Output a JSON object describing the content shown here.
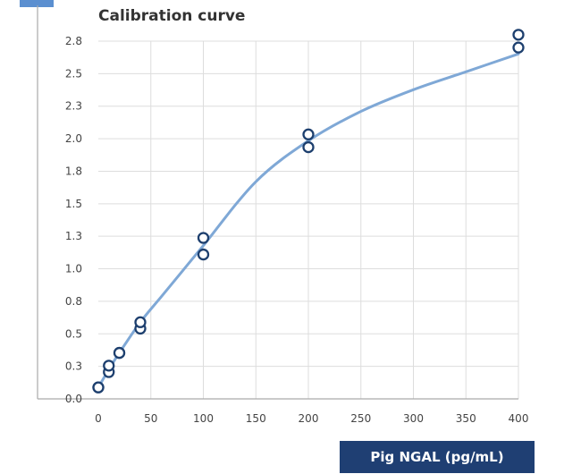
{
  "chart_data": {
    "type": "scatter",
    "title": "Calibration curve",
    "xlabel": "Pig NGAL (pg/mL)",
    "ylabel": "",
    "xlim": [
      0,
      400
    ],
    "ylim": [
      0.0,
      2.8
    ],
    "x_ticks": [
      "0",
      "50",
      "100",
      "150",
      "200",
      "250",
      "300",
      "350",
      "400"
    ],
    "y_ticks": [
      "0.0",
      "0.3",
      "0.5",
      "0.8",
      "1.0",
      "1.3",
      "1.5",
      "1.8",
      "2.0",
      "2.3",
      "2.5",
      "2.8"
    ],
    "grid": true,
    "colors": {
      "curve": "#7fa8d6",
      "points": "#1d3f6e",
      "xlabel_bg": "#1f3f73"
    },
    "series": [
      {
        "points": [
          [
            0,
            0.09
          ],
          [
            0,
            0.09
          ],
          [
            10,
            0.21
          ],
          [
            10,
            0.26
          ],
          [
            20,
            0.36
          ],
          [
            20,
            0.36
          ],
          [
            40,
            0.55
          ],
          [
            40,
            0.6
          ],
          [
            100,
            1.13
          ],
          [
            100,
            1.26
          ],
          [
            200,
            1.97
          ],
          [
            200,
            2.07
          ],
          [
            400,
            2.75
          ],
          [
            400,
            2.85
          ]
        ],
        "fit": [
          [
            0,
            0.09
          ],
          [
            10,
            0.23
          ],
          [
            20,
            0.36
          ],
          [
            40,
            0.6
          ],
          [
            60,
            0.8
          ],
          [
            80,
            1.0
          ],
          [
            100,
            1.2
          ],
          [
            150,
            1.7
          ],
          [
            200,
            2.02
          ],
          [
            250,
            2.25
          ],
          [
            300,
            2.42
          ],
          [
            350,
            2.56
          ],
          [
            400,
            2.7
          ]
        ]
      }
    ]
  }
}
